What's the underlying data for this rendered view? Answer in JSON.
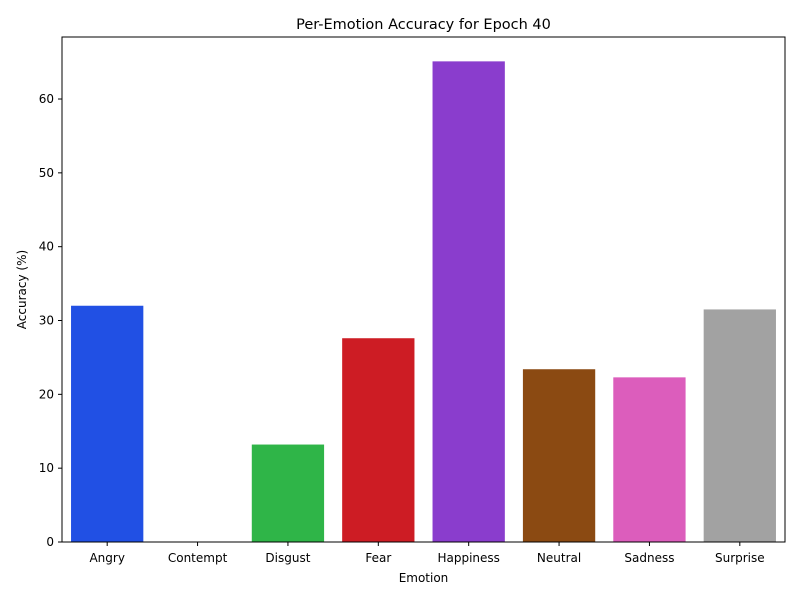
{
  "chart_data": {
    "type": "bar",
    "title": "Per-Emotion Accuracy for Epoch 40",
    "xlabel": "Emotion",
    "ylabel": "Accuracy (%)",
    "categories": [
      "Angry",
      "Contempt",
      "Disgust",
      "Fear",
      "Happiness",
      "Neutral",
      "Sadness",
      "Surprise"
    ],
    "values": [
      32.0,
      0.0,
      13.2,
      27.6,
      65.1,
      23.4,
      22.3,
      31.5
    ],
    "colors": [
      "#2150e4",
      "#f08b24",
      "#2fb548",
      "#cd1c24",
      "#8a3dcd",
      "#8b4a12",
      "#dc5dbc",
      "#a2a2a2"
    ],
    "ylim": [
      0,
      68.4
    ],
    "yticks": [
      0,
      10,
      20,
      30,
      40,
      50,
      60
    ],
    "grid": false,
    "legend": "none"
  }
}
